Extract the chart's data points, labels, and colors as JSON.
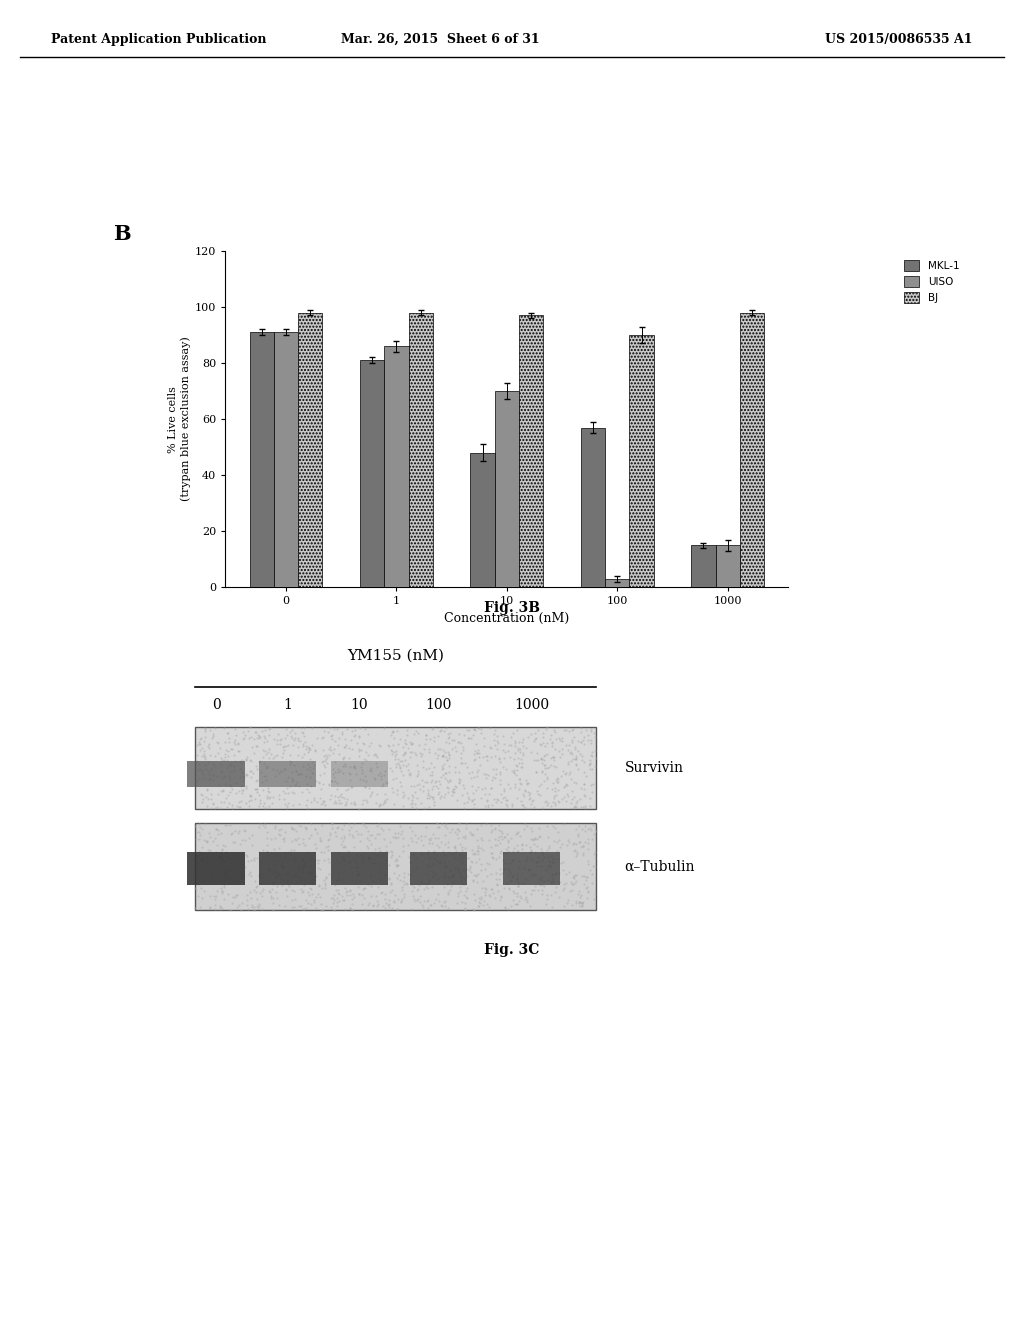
{
  "header_left": "Patent Application Publication",
  "header_mid": "Mar. 26, 2015  Sheet 6 of 31",
  "header_right": "US 2015/0086535 A1",
  "fig_b_label": "B",
  "fig_b_caption": "Fig. 3B",
  "fig_c_caption": "Fig. 3C",
  "bar_categories": [
    "0",
    "1",
    "10",
    "100",
    "1000"
  ],
  "xlabel": "Concentration (nM)",
  "ylabel": "% Live cells\n(trypan blue exclusion assay)",
  "ylim": [
    0,
    120
  ],
  "yticks": [
    0,
    20,
    40,
    60,
    80,
    100,
    120
  ],
  "legend_labels": [
    "MKL-1",
    "UISO",
    "BJ"
  ],
  "bar_colors": [
    "#737373",
    "#8f8f8f",
    "#c8c8c8"
  ],
  "mkl1_values": [
    91,
    81,
    48,
    57,
    15
  ],
  "uiso_values": [
    91,
    86,
    70,
    3,
    15
  ],
  "bj_values": [
    98,
    98,
    97,
    90,
    98
  ],
  "mkl1_errors": [
    1,
    1,
    3,
    2,
    1
  ],
  "uiso_errors": [
    1,
    2,
    3,
    1,
    2
  ],
  "bj_errors": [
    1,
    1,
    1,
    3,
    1
  ],
  "wb_title": "YM155 (nM)",
  "wb_doses": [
    "0",
    "1",
    "10",
    "100",
    "1000"
  ],
  "survivin_label": "Survivin",
  "tubulin_label": "α–Tubulin",
  "bg_color": "#ffffff",
  "bar_width": 0.22
}
